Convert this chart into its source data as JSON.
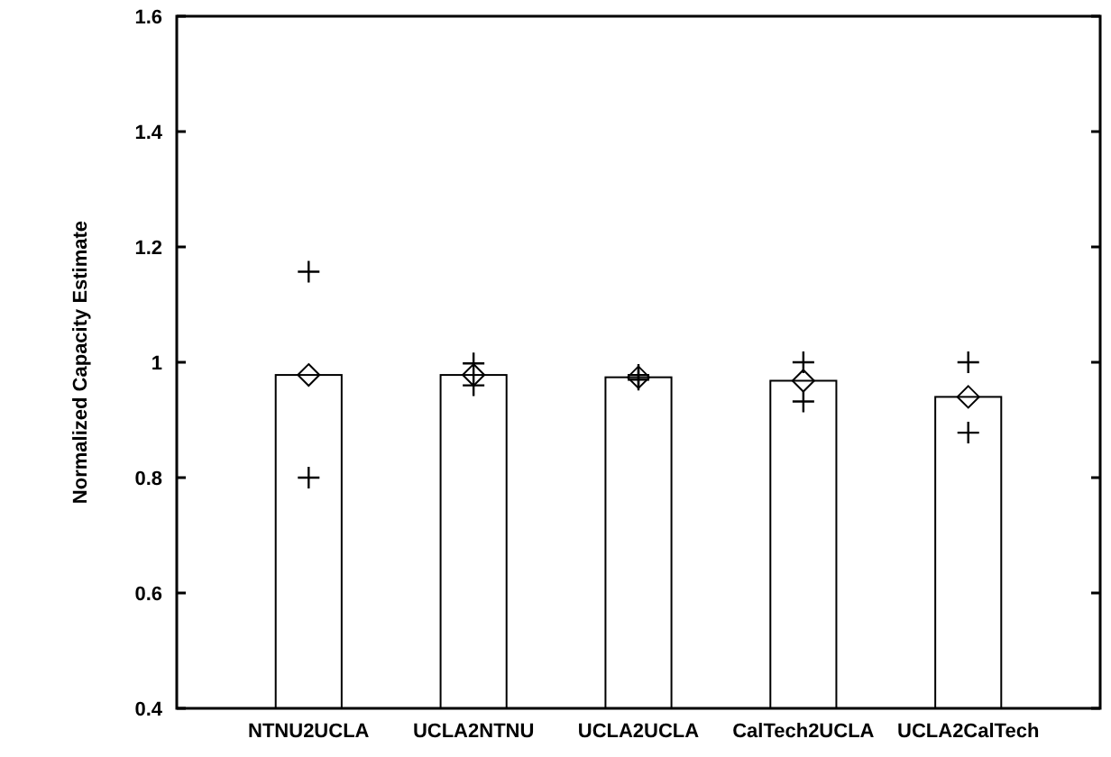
{
  "chart_data": {
    "type": "bar",
    "ylabel": "Normalized Capacity Estimate",
    "categories": [
      "NTNU2UCLA",
      "UCLA2NTNU",
      "UCLA2UCLA",
      "CalTech2UCLA",
      "UCLA2CalTech"
    ],
    "series": [
      {
        "color": "#ffffff",
        "values": [
          0.978,
          0.978,
          0.974,
          0.968,
          0.94
        ]
      },
      {
        "type": "scatter",
        "marker": "diamond",
        "color": "#000000",
        "x": [
          "NTNU2UCLA",
          "UCLA2NTNU",
          "UCLA2UCLA",
          "CalTech2UCLA",
          "UCLA2CalTech"
        ],
        "values": [
          0.978,
          0.978,
          0.974,
          0.968,
          0.94
        ]
      },
      {
        "type": "scatter",
        "marker": "cross",
        "color": "#000000",
        "x": [
          "NTNU2UCLA",
          "UCLA2NTNU",
          "UCLA2UCLA",
          "CalTech2UCLA",
          "UCLA2CalTech"
        ],
        "values": [
          1.157,
          0.998,
          0.978,
          1.0,
          1.0
        ]
      },
      {
        "type": "scatter",
        "marker": "cross",
        "color": "#000000",
        "x": [
          "NTNU2UCLA",
          "UCLA2NTNU",
          "UCLA2UCLA",
          "CalTech2UCLA",
          "UCLA2CalTech"
        ],
        "values": [
          0.8,
          0.96,
          0.97,
          0.932,
          0.878
        ]
      }
    ],
    "ylim": [
      0.4,
      1.6
    ],
    "yticks": [
      0.4,
      0.6,
      0.8,
      1,
      1.2,
      1.4,
      1.6
    ],
    "grid": false
  }
}
